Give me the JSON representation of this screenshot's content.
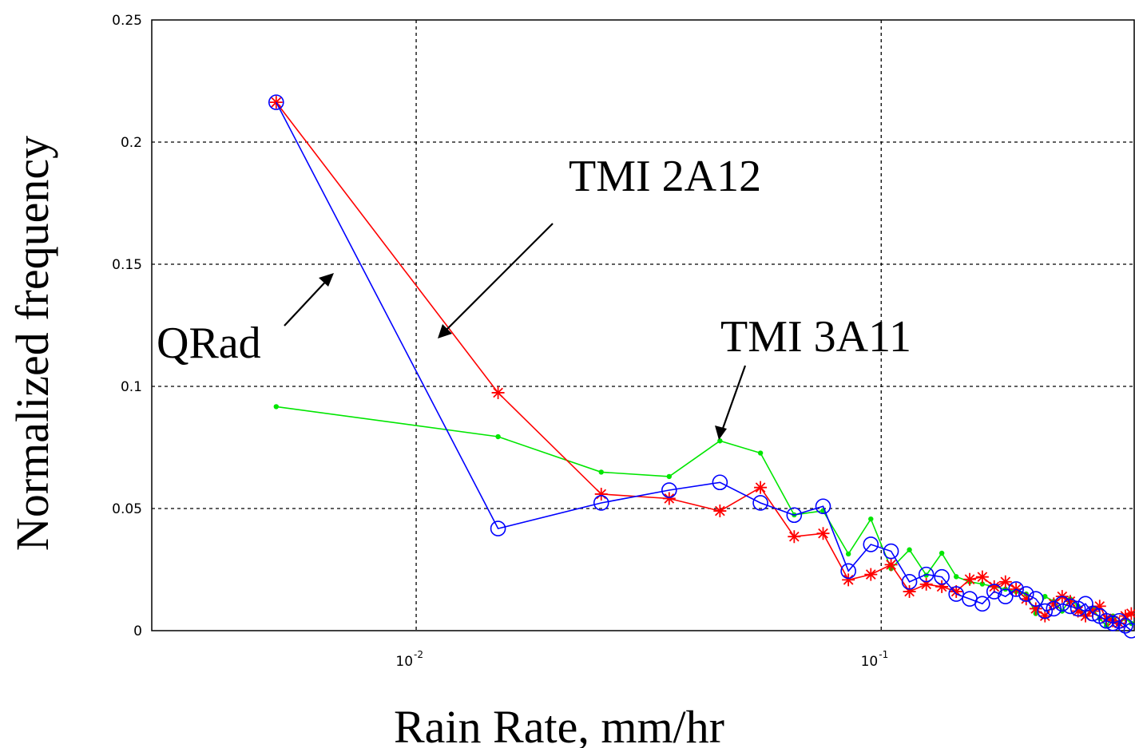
{
  "chart_data": {
    "type": "line",
    "xlabel": "Rain Rate, mm/hr",
    "ylabel": "Normalized frequency",
    "xscale": "log",
    "xlim": [
      0.0027,
      0.35
    ],
    "ylim": [
      0,
      0.25
    ],
    "grid": true,
    "x_ticks": [
      {
        "base": "10",
        "exp": "-2",
        "value": 0.01
      },
      {
        "base": "10",
        "exp": "-1",
        "value": 0.1
      }
    ],
    "y_ticks": [
      {
        "label": "0",
        "value": 0
      },
      {
        "label": "0.05",
        "value": 0.05
      },
      {
        "label": "0.1",
        "value": 0.1
      },
      {
        "label": "0.15",
        "value": 0.15
      },
      {
        "label": "0.2",
        "value": 0.2
      },
      {
        "label": "0.25",
        "value": 0.25
      }
    ],
    "series": [
      {
        "id": "tmi-3a11",
        "color": "#00e600",
        "marker": "dot",
        "points": [
          [
            0.005,
            0.0917
          ],
          [
            0.015,
            0.0794
          ],
          [
            0.025,
            0.0649
          ],
          [
            0.035,
            0.0631
          ],
          [
            0.045,
            0.0777
          ],
          [
            0.055,
            0.0727
          ],
          [
            0.065,
            0.0474
          ],
          [
            0.075,
            0.0491
          ],
          [
            0.085,
            0.0314
          ],
          [
            0.095,
            0.0457
          ],
          [
            0.105,
            0.0254
          ],
          [
            0.115,
            0.0331
          ],
          [
            0.125,
            0.0227
          ],
          [
            0.135,
            0.0317
          ],
          [
            0.145,
            0.0221
          ],
          [
            0.155,
            0.02
          ],
          [
            0.165,
            0.0191
          ],
          [
            0.175,
            0.018
          ],
          [
            0.185,
            0.017
          ],
          [
            0.195,
            0.016
          ],
          [
            0.205,
            0.015
          ],
          [
            0.215,
            0.007
          ],
          [
            0.225,
            0.014
          ],
          [
            0.235,
            0.012
          ],
          [
            0.245,
            0.008
          ],
          [
            0.255,
            0.013
          ],
          [
            0.265,
            0.01
          ],
          [
            0.275,
            0.006
          ],
          [
            0.285,
            0.009
          ],
          [
            0.295,
            0.005
          ],
          [
            0.305,
            0.002
          ],
          [
            0.315,
            0.006
          ],
          [
            0.325,
            0.003
          ],
          [
            0.335,
            0.005
          ],
          [
            0.345,
            0.003
          ]
        ]
      },
      {
        "id": "tmi-2a12",
        "color": "#ff0000",
        "marker": "star",
        "points": [
          [
            0.005,
            0.2163
          ],
          [
            0.015,
            0.0974
          ],
          [
            0.025,
            0.0559
          ],
          [
            0.035,
            0.0541
          ],
          [
            0.045,
            0.049
          ],
          [
            0.055,
            0.0586
          ],
          [
            0.065,
            0.0385
          ],
          [
            0.075,
            0.0398
          ],
          [
            0.085,
            0.0208
          ],
          [
            0.095,
            0.023
          ],
          [
            0.105,
            0.027
          ],
          [
            0.115,
            0.016
          ],
          [
            0.125,
            0.019
          ],
          [
            0.135,
            0.018
          ],
          [
            0.145,
            0.016
          ],
          [
            0.155,
            0.021
          ],
          [
            0.165,
            0.022
          ],
          [
            0.175,
            0.018
          ],
          [
            0.185,
            0.02
          ],
          [
            0.195,
            0.017
          ],
          [
            0.205,
            0.013
          ],
          [
            0.215,
            0.009
          ],
          [
            0.225,
            0.006
          ],
          [
            0.235,
            0.011
          ],
          [
            0.245,
            0.014
          ],
          [
            0.255,
            0.012
          ],
          [
            0.265,
            0.008
          ],
          [
            0.275,
            0.006
          ],
          [
            0.285,
            0.008
          ],
          [
            0.295,
            0.01
          ],
          [
            0.305,
            0.005
          ],
          [
            0.315,
            0.004
          ],
          [
            0.325,
            0.003
          ],
          [
            0.335,
            0.006
          ],
          [
            0.345,
            0.007
          ]
        ]
      },
      {
        "id": "qrad",
        "color": "#0000ff",
        "marker": "circle",
        "points": [
          [
            0.005,
            0.2163
          ],
          [
            0.015,
            0.0418
          ],
          [
            0.025,
            0.0523
          ],
          [
            0.035,
            0.0575
          ],
          [
            0.045,
            0.0607
          ],
          [
            0.055,
            0.0523
          ],
          [
            0.065,
            0.0473
          ],
          [
            0.075,
            0.0509
          ],
          [
            0.085,
            0.0244
          ],
          [
            0.095,
            0.0353
          ],
          [
            0.105,
            0.0325
          ],
          [
            0.115,
            0.02
          ],
          [
            0.125,
            0.023
          ],
          [
            0.135,
            0.022
          ],
          [
            0.145,
            0.015
          ],
          [
            0.155,
            0.013
          ],
          [
            0.165,
            0.011
          ],
          [
            0.175,
            0.016
          ],
          [
            0.185,
            0.014
          ],
          [
            0.195,
            0.017
          ],
          [
            0.205,
            0.015
          ],
          [
            0.215,
            0.013
          ],
          [
            0.225,
            0.008
          ],
          [
            0.235,
            0.009
          ],
          [
            0.245,
            0.011
          ],
          [
            0.255,
            0.01
          ],
          [
            0.265,
            0.009
          ],
          [
            0.275,
            0.011
          ],
          [
            0.285,
            0.007
          ],
          [
            0.295,
            0.006
          ],
          [
            0.305,
            0.004
          ],
          [
            0.315,
            0.003
          ],
          [
            0.325,
            0.004
          ],
          [
            0.335,
            0.002
          ],
          [
            0.345,
            0.0
          ]
        ]
      }
    ],
    "annotations": [
      {
        "id": "tmi-2a12",
        "text": "TMI 2A12"
      },
      {
        "id": "tmi-3a11",
        "text": "TMI 3A11"
      },
      {
        "id": "qrad",
        "text": "QRad"
      }
    ]
  }
}
